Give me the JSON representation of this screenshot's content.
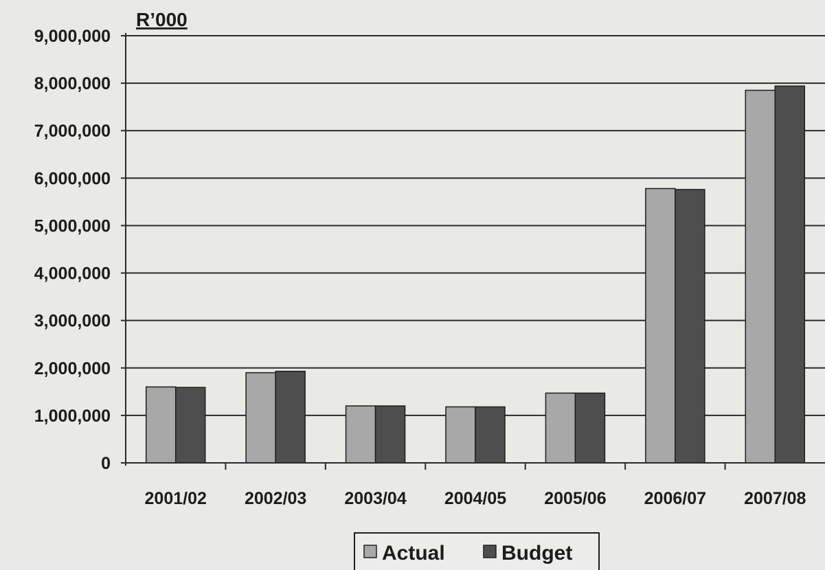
{
  "chart_data": {
    "type": "bar",
    "unit_label": "R’000",
    "categories": [
      "2001/02",
      "2002/03",
      "2003/04",
      "2004/05",
      "2005/06",
      "2006/07",
      "2007/08"
    ],
    "series": [
      {
        "name": "Actual",
        "color": "#a8a8a8",
        "values": [
          1600000,
          1900000,
          1200000,
          1180000,
          1470000,
          5780000,
          7850000
        ]
      },
      {
        "name": "Budget",
        "color": "#4e4e4e",
        "values": [
          1590000,
          1930000,
          1200000,
          1180000,
          1470000,
          5760000,
          7940000
        ]
      }
    ],
    "ylim": [
      0,
      9000000
    ],
    "yticks": [
      {
        "value": 0,
        "label": "0"
      },
      {
        "value": 1000000,
        "label": "1,000,000"
      },
      {
        "value": 2000000,
        "label": "2,000,000"
      },
      {
        "value": 3000000,
        "label": "3,000,000"
      },
      {
        "value": 4000000,
        "label": "4,000,000"
      },
      {
        "value": 5000000,
        "label": "5,000,000"
      },
      {
        "value": 6000000,
        "label": "6,000,000"
      },
      {
        "value": 7000000,
        "label": "7,000,000"
      },
      {
        "value": 8000000,
        "label": "8,000,000"
      },
      {
        "value": 9000000,
        "label": "9,000,000"
      }
    ],
    "grid": true,
    "legend_position": "bottom-center"
  }
}
